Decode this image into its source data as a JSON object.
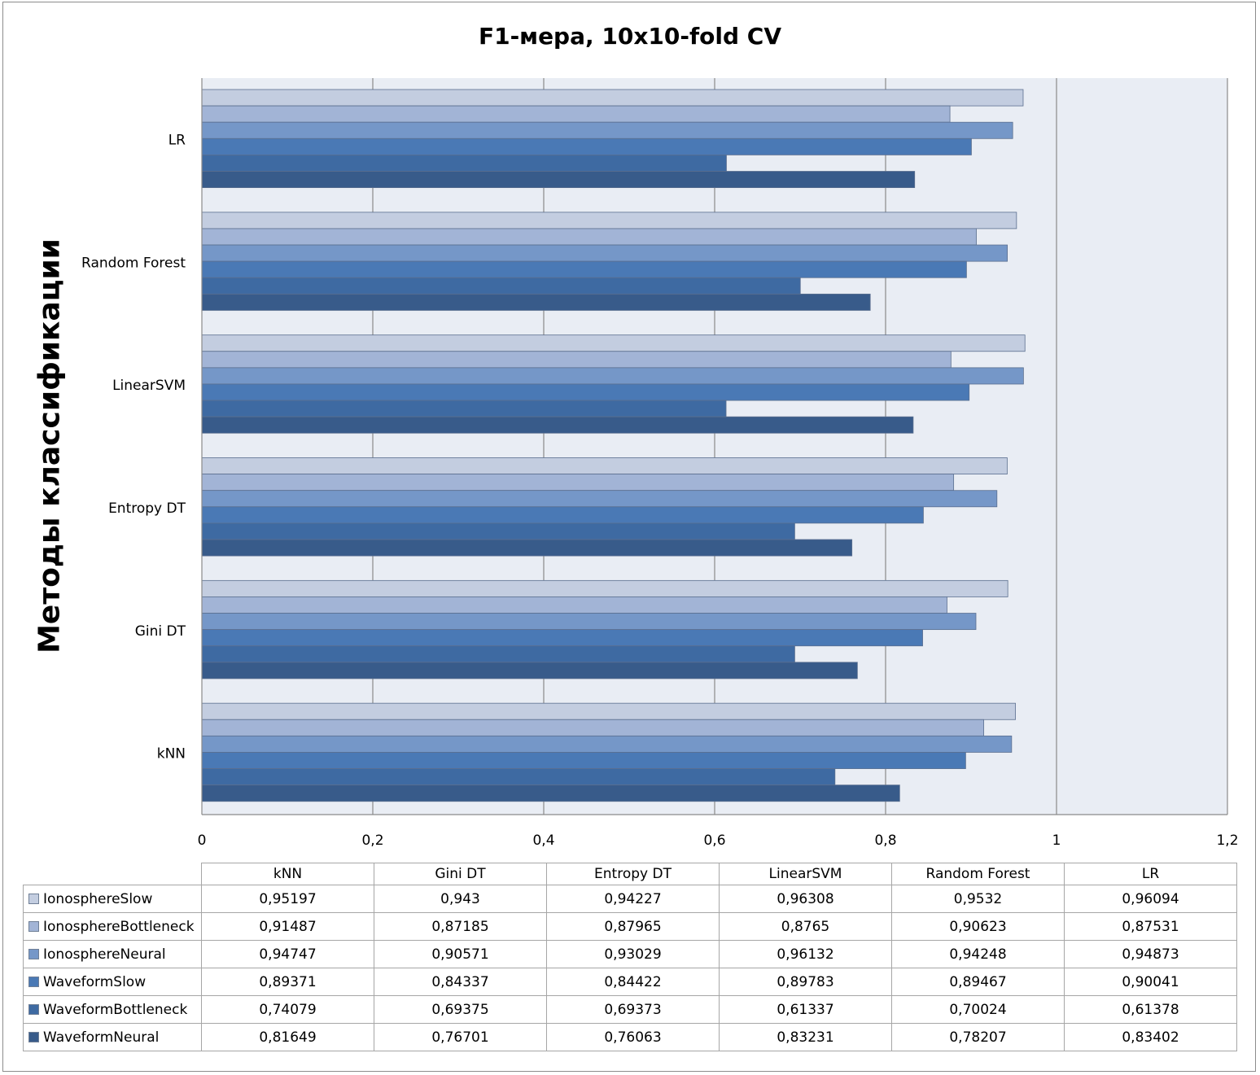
{
  "chart_data": {
    "type": "bar",
    "orientation": "horizontal",
    "title": "F1-мера, 10x10-fold CV",
    "ylabel": "Методы классификации",
    "xlabel": "",
    "xlim": [
      0,
      1.2
    ],
    "x_ticks": [
      "0",
      "0,2",
      "0,4",
      "0,6",
      "0,8",
      "1",
      "1,2"
    ],
    "grid": true,
    "legend": "data table below chart",
    "categories": [
      "kNN",
      "Gini DT",
      "Entropy DT",
      "LinearSVM",
      "Random Forest",
      "LR"
    ],
    "series": [
      {
        "name": "IonosphereSlow",
        "color": "#c3cde0",
        "values": [
          0.95197,
          0.943,
          0.94227,
          0.96308,
          0.9532,
          0.96094
        ]
      },
      {
        "name": "IonosphereBottleneck",
        "color": "#a2b4d6",
        "values": [
          0.91487,
          0.87185,
          0.87965,
          0.8765,
          0.90623,
          0.87531
        ]
      },
      {
        "name": "IonosphereNeural",
        "color": "#7597c8",
        "values": [
          0.94747,
          0.90571,
          0.93029,
          0.96132,
          0.94248,
          0.94873
        ]
      },
      {
        "name": "WaveformSlow",
        "color": "#4a79b5",
        "values": [
          0.89371,
          0.84337,
          0.84422,
          0.89783,
          0.89467,
          0.90041
        ]
      },
      {
        "name": "WaveformBottleneck",
        "color": "#3e6aa2",
        "values": [
          0.74079,
          0.69375,
          0.69373,
          0.61337,
          0.70024,
          0.61378
        ]
      },
      {
        "name": "WaveformNeural",
        "color": "#385b8a",
        "values": [
          0.81649,
          0.76701,
          0.76063,
          0.83231,
          0.78207,
          0.83402
        ]
      }
    ],
    "table_values": [
      [
        "0,95197",
        "0,943",
        "0,94227",
        "0,96308",
        "0,9532",
        "0,96094"
      ],
      [
        "0,91487",
        "0,87185",
        "0,87965",
        "0,8765",
        "0,90623",
        "0,87531"
      ],
      [
        "0,94747",
        "0,90571",
        "0,93029",
        "0,96132",
        "0,94248",
        "0,94873"
      ],
      [
        "0,89371",
        "0,84337",
        "0,84422",
        "0,89783",
        "0,89467",
        "0,90041"
      ],
      [
        "0,74079",
        "0,69375",
        "0,69373",
        "0,61337",
        "0,70024",
        "0,61378"
      ],
      [
        "0,81649",
        "0,76701",
        "0,76063",
        "0,83231",
        "0,78207",
        "0,83402"
      ]
    ]
  },
  "colors": {
    "plot_background": "#e9edf4",
    "grid_line": "#8a8a8a",
    "bar_border": "#5b6f8f"
  }
}
